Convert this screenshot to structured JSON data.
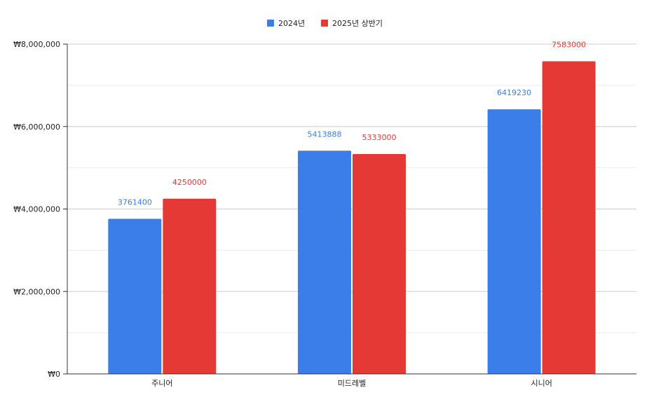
{
  "chart_data": {
    "type": "bar",
    "title": "",
    "xlabel": "",
    "ylabel": "",
    "categories": [
      "주니어",
      "미드레벨",
      "시니어"
    ],
    "series": [
      {
        "name": "2024년",
        "values": [
          3761400,
          5413888,
          6419230
        ],
        "color": "#3b7de9"
      },
      {
        "name": "2025년 상반기",
        "values": [
          4250000,
          5333000,
          7583000
        ],
        "color": "#e53935"
      }
    ],
    "ylim": [
      0,
      8000000
    ],
    "yticks": [
      0,
      2000000,
      4000000,
      6000000,
      8000000
    ],
    "ytick_labels": [
      "₩0",
      "₩2,000,000",
      "₩4,000,000",
      "₩6,000,000",
      "₩8,000,000"
    ],
    "grid": true,
    "legend": "top-center",
    "data_labels": true
  }
}
